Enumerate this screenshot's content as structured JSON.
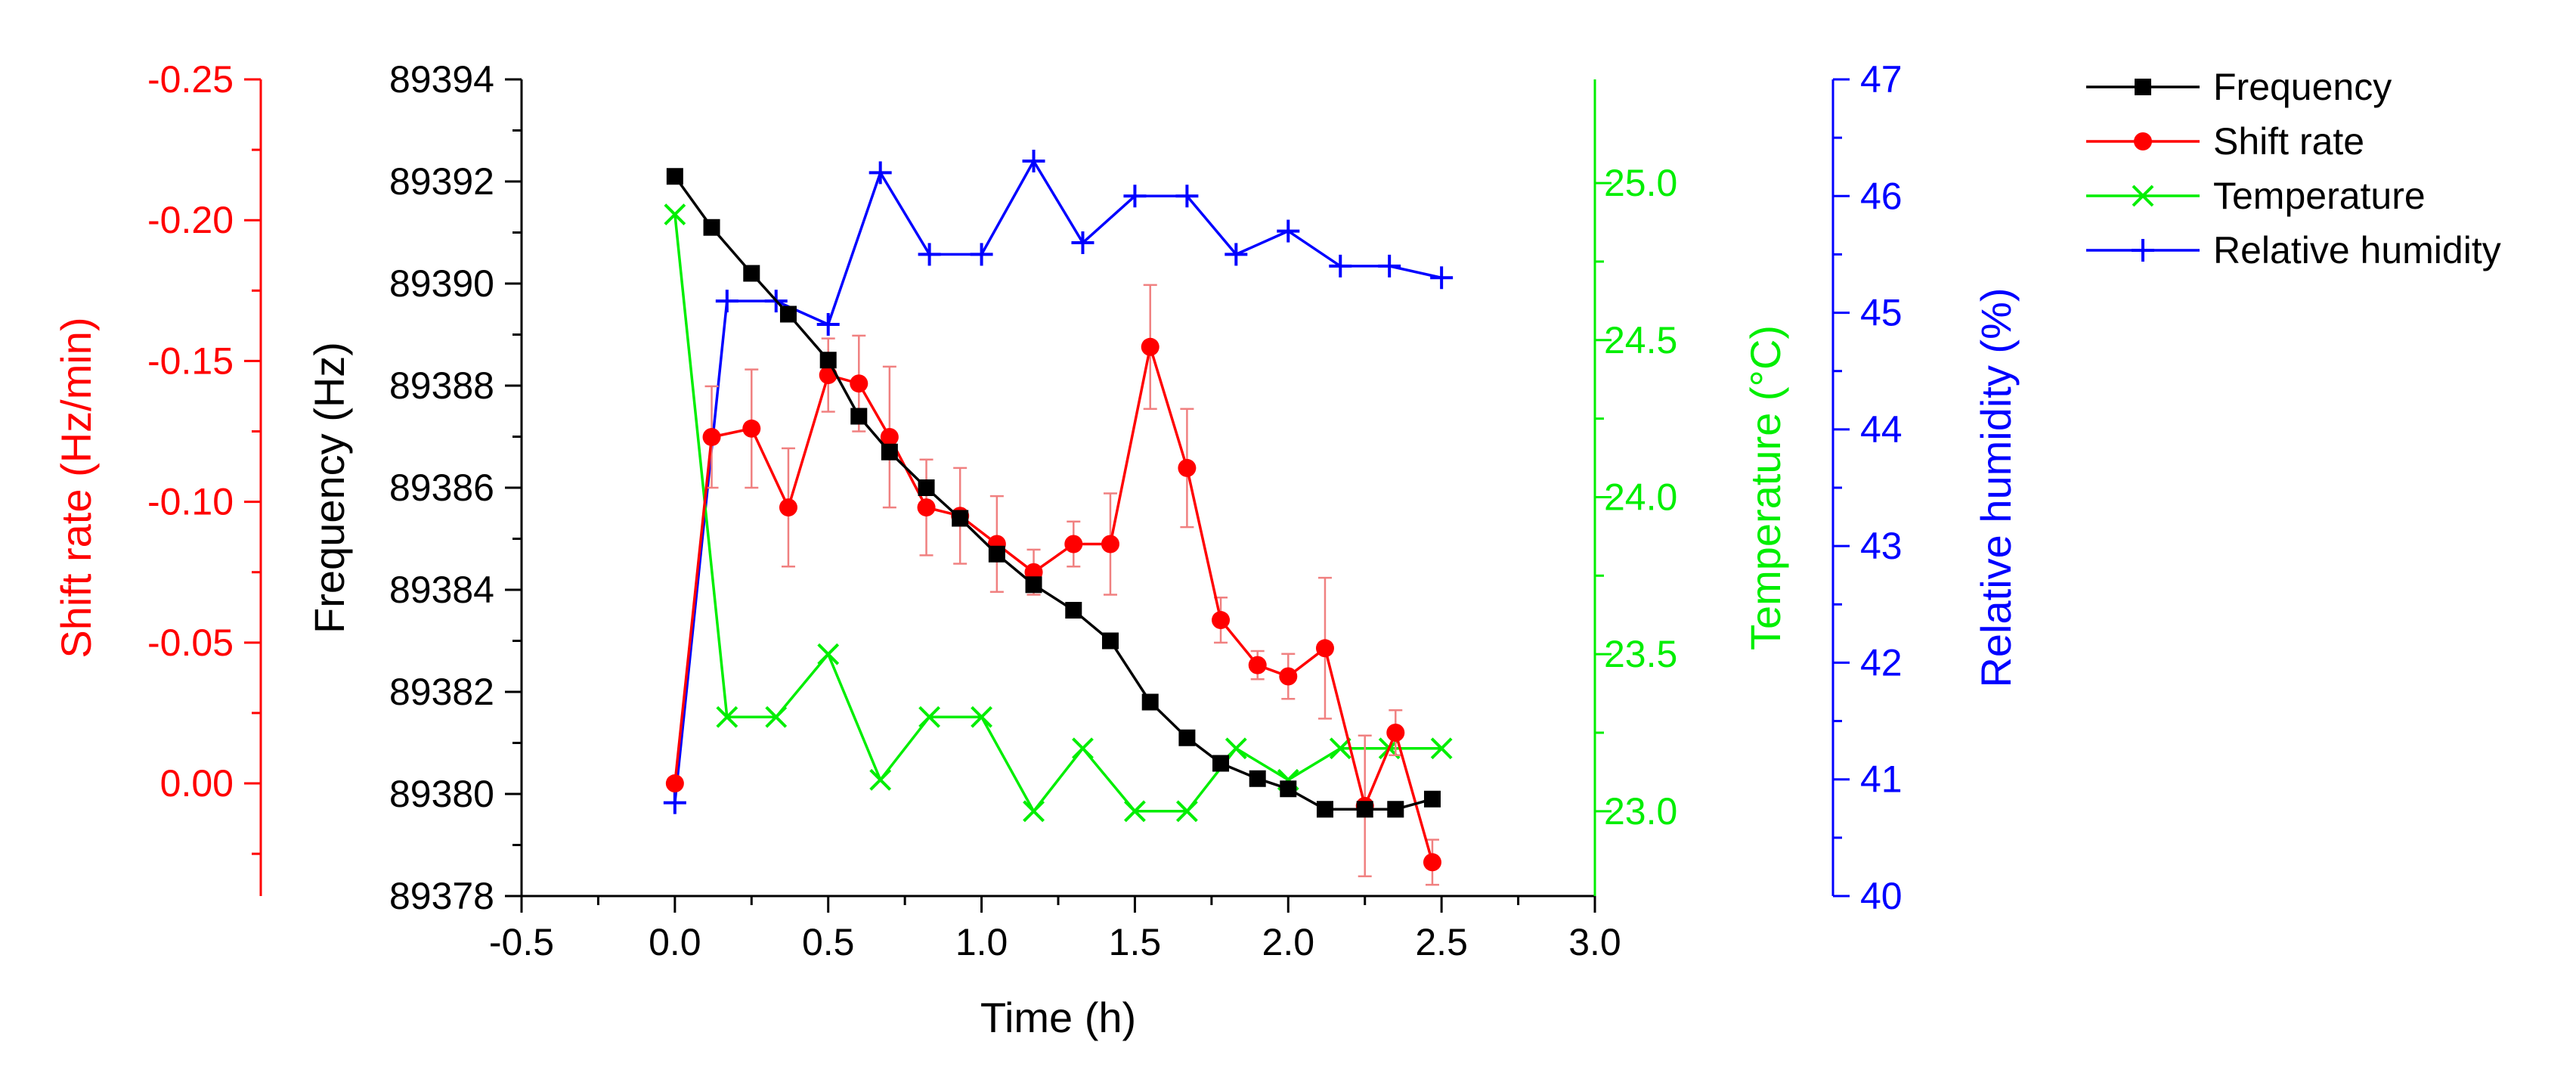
{
  "chart_data": {
    "type": "line",
    "title": "",
    "xlabel": "Time (h)",
    "xlim": [
      -0.5,
      3.0
    ],
    "xticks": [
      "-0.5",
      "0.0",
      "0.5",
      "1.0",
      "1.5",
      "2.0",
      "2.5",
      "3.0"
    ],
    "axes": {
      "shift_rate": {
        "label": "Shift rate (Hz/min)",
        "range": [
          0.04,
          -0.25
        ],
        "ticks": [
          "-0.25",
          "-0.20",
          "-0.15",
          "-0.10",
          "-0.05",
          "0.00"
        ],
        "color": "#ff0000"
      },
      "frequency": {
        "label": "Frequency (Hz)",
        "range": [
          89378,
          89394
        ],
        "ticks": [
          "89378",
          "89380",
          "89382",
          "89384",
          "89386",
          "89388",
          "89390",
          "89392",
          "89394"
        ],
        "color": "#000000"
      },
      "temperature": {
        "label": "Temperature (°C)",
        "range": [
          22.73,
          25.33
        ],
        "ticks": [
          "23.0",
          "23.5",
          "24.0",
          "24.5",
          "25.0"
        ],
        "color": "#00ee00"
      },
      "humidity": {
        "label": "Relative humidity (%)",
        "range": [
          40,
          47
        ],
        "ticks": [
          "40",
          "41",
          "42",
          "43",
          "44",
          "45",
          "46",
          "47"
        ],
        "color": "#0000ff"
      }
    },
    "series": [
      {
        "name": "Frequency",
        "axis": "frequency",
        "marker": "square",
        "color": "#000000",
        "x": [
          0.0,
          0.12,
          0.25,
          0.37,
          0.5,
          0.6,
          0.7,
          0.82,
          0.93,
          1.05,
          1.17,
          1.3,
          1.42,
          1.55,
          1.67,
          1.78,
          1.9,
          2.0,
          2.12,
          2.25,
          2.35,
          2.47
        ],
        "y": [
          89392.1,
          89391.1,
          89390.2,
          89389.4,
          89388.5,
          89387.4,
          89386.7,
          89386.0,
          89385.4,
          89384.7,
          89384.1,
          89383.6,
          89383.0,
          89381.8,
          89381.1,
          89380.6,
          89380.3,
          89380.1,
          89379.7,
          89379.7,
          89379.7,
          89379.9
        ]
      },
      {
        "name": "Shift rate",
        "axis": "shift_rate",
        "marker": "circle",
        "color": "#ff0000",
        "x": [
          0.0,
          0.12,
          0.25,
          0.37,
          0.5,
          0.6,
          0.7,
          0.82,
          0.93,
          1.05,
          1.17,
          1.3,
          1.42,
          1.55,
          1.67,
          1.78,
          1.9,
          2.0,
          2.12,
          2.25,
          2.35,
          2.47
        ],
        "y": [
          0.0,
          -0.123,
          -0.126,
          -0.098,
          -0.145,
          -0.142,
          -0.123,
          -0.098,
          -0.095,
          -0.085,
          -0.075,
          -0.085,
          -0.085,
          -0.155,
          -0.112,
          -0.058,
          -0.042,
          -0.038,
          -0.048,
          0.008,
          -0.018,
          0.028
        ],
        "error": [
          0.0,
          0.018,
          0.021,
          0.021,
          0.013,
          0.017,
          0.025,
          0.017,
          0.017,
          0.017,
          0.008,
          0.008,
          0.018,
          0.022,
          0.021,
          0.008,
          0.005,
          0.008,
          0.025,
          0.025,
          0.008,
          0.008
        ]
      },
      {
        "name": "Temperature",
        "axis": "temperature",
        "marker": "x",
        "color": "#00ee00",
        "x": [
          0.0,
          0.17,
          0.33,
          0.5,
          0.67,
          0.83,
          1.0,
          1.17,
          1.33,
          1.5,
          1.67,
          1.83,
          2.0,
          2.17,
          2.33,
          2.5
        ],
        "y": [
          24.9,
          23.3,
          23.3,
          23.5,
          23.1,
          23.3,
          23.3,
          23.0,
          23.2,
          23.0,
          23.0,
          23.2,
          23.1,
          23.2,
          23.2,
          23.2
        ]
      },
      {
        "name": "Relative humidity",
        "axis": "humidity",
        "marker": "plus",
        "color": "#0000ff",
        "x": [
          0.0,
          0.17,
          0.33,
          0.5,
          0.67,
          0.83,
          1.0,
          1.17,
          1.33,
          1.5,
          1.67,
          1.83,
          2.0,
          2.17,
          2.33,
          2.5
        ],
        "y": [
          40.8,
          45.1,
          45.1,
          44.9,
          46.2,
          45.5,
          45.5,
          46.3,
          45.6,
          46.0,
          46.0,
          45.5,
          45.7,
          45.4,
          45.4,
          45.3
        ]
      }
    ],
    "legend": [
      "Frequency",
      "Shift rate",
      "Temperature",
      "Relative humidity"
    ]
  }
}
